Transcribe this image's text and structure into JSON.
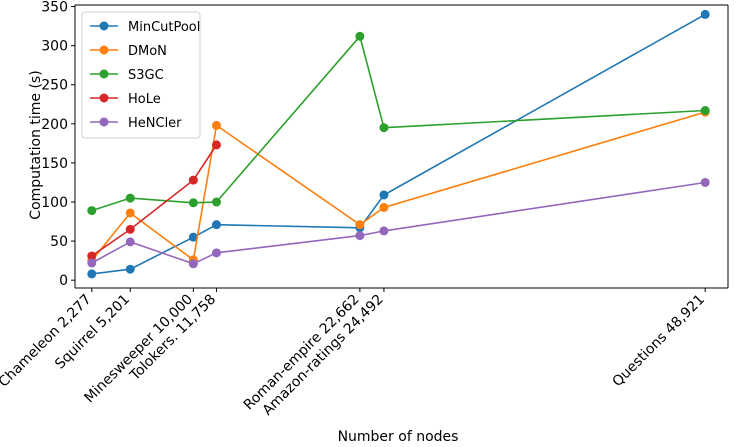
{
  "chart_data": {
    "type": "line",
    "xlabel": "Number of nodes",
    "ylabel": "Computation time (s)",
    "ylim": [
      -10,
      352
    ],
    "yticks": [
      0,
      50,
      100,
      150,
      200,
      250,
      300,
      350
    ],
    "xlim": [
      1000,
      50200
    ],
    "xticks": [
      {
        "x": 2277,
        "label": "Chameleon 2,277"
      },
      {
        "x": 5201,
        "label": "Squirrel 5,201"
      },
      {
        "x": 10000,
        "label": "Minesweeper 10,000"
      },
      {
        "x": 11758,
        "label": "Tolokers. 11,758"
      },
      {
        "x": 22662,
        "label": "Roman-empire 22,662"
      },
      {
        "x": 24492,
        "label": "Amazon-ratings 24,492"
      },
      {
        "x": 48921,
        "label": "Questions 48,921"
      }
    ],
    "legend_position": "top-left",
    "grid": false,
    "series": [
      {
        "name": "MinCutPool",
        "color": "#1f77b4",
        "x": [
          2277,
          5201,
          10000,
          11758,
          22662,
          24492,
          48921
        ],
        "y": [
          8,
          14,
          55,
          71,
          67,
          109,
          340
        ]
      },
      {
        "name": "DMoN",
        "color": "#ff7f0e",
        "x": [
          2277,
          5201,
          10000,
          11758,
          22662,
          24492,
          48921
        ],
        "y": [
          25,
          86,
          26,
          198,
          71,
          93,
          215
        ]
      },
      {
        "name": "S3GC",
        "color": "#2ca02c",
        "x": [
          2277,
          5201,
          10000,
          11758,
          22662,
          24492,
          48921
        ],
        "y": [
          89,
          105,
          99,
          100,
          312,
          195,
          217
        ]
      },
      {
        "name": "HoLe",
        "color": "#d62728",
        "x": [
          2277,
          5201,
          10000,
          11758
        ],
        "y": [
          31,
          65,
          128,
          173
        ]
      },
      {
        "name": "HeNCler",
        "color": "#9467bd",
        "x": [
          2277,
          5201,
          10000,
          11758,
          22662,
          24492,
          48921
        ],
        "y": [
          22,
          49,
          21,
          35,
          57,
          63,
          125
        ]
      }
    ]
  }
}
